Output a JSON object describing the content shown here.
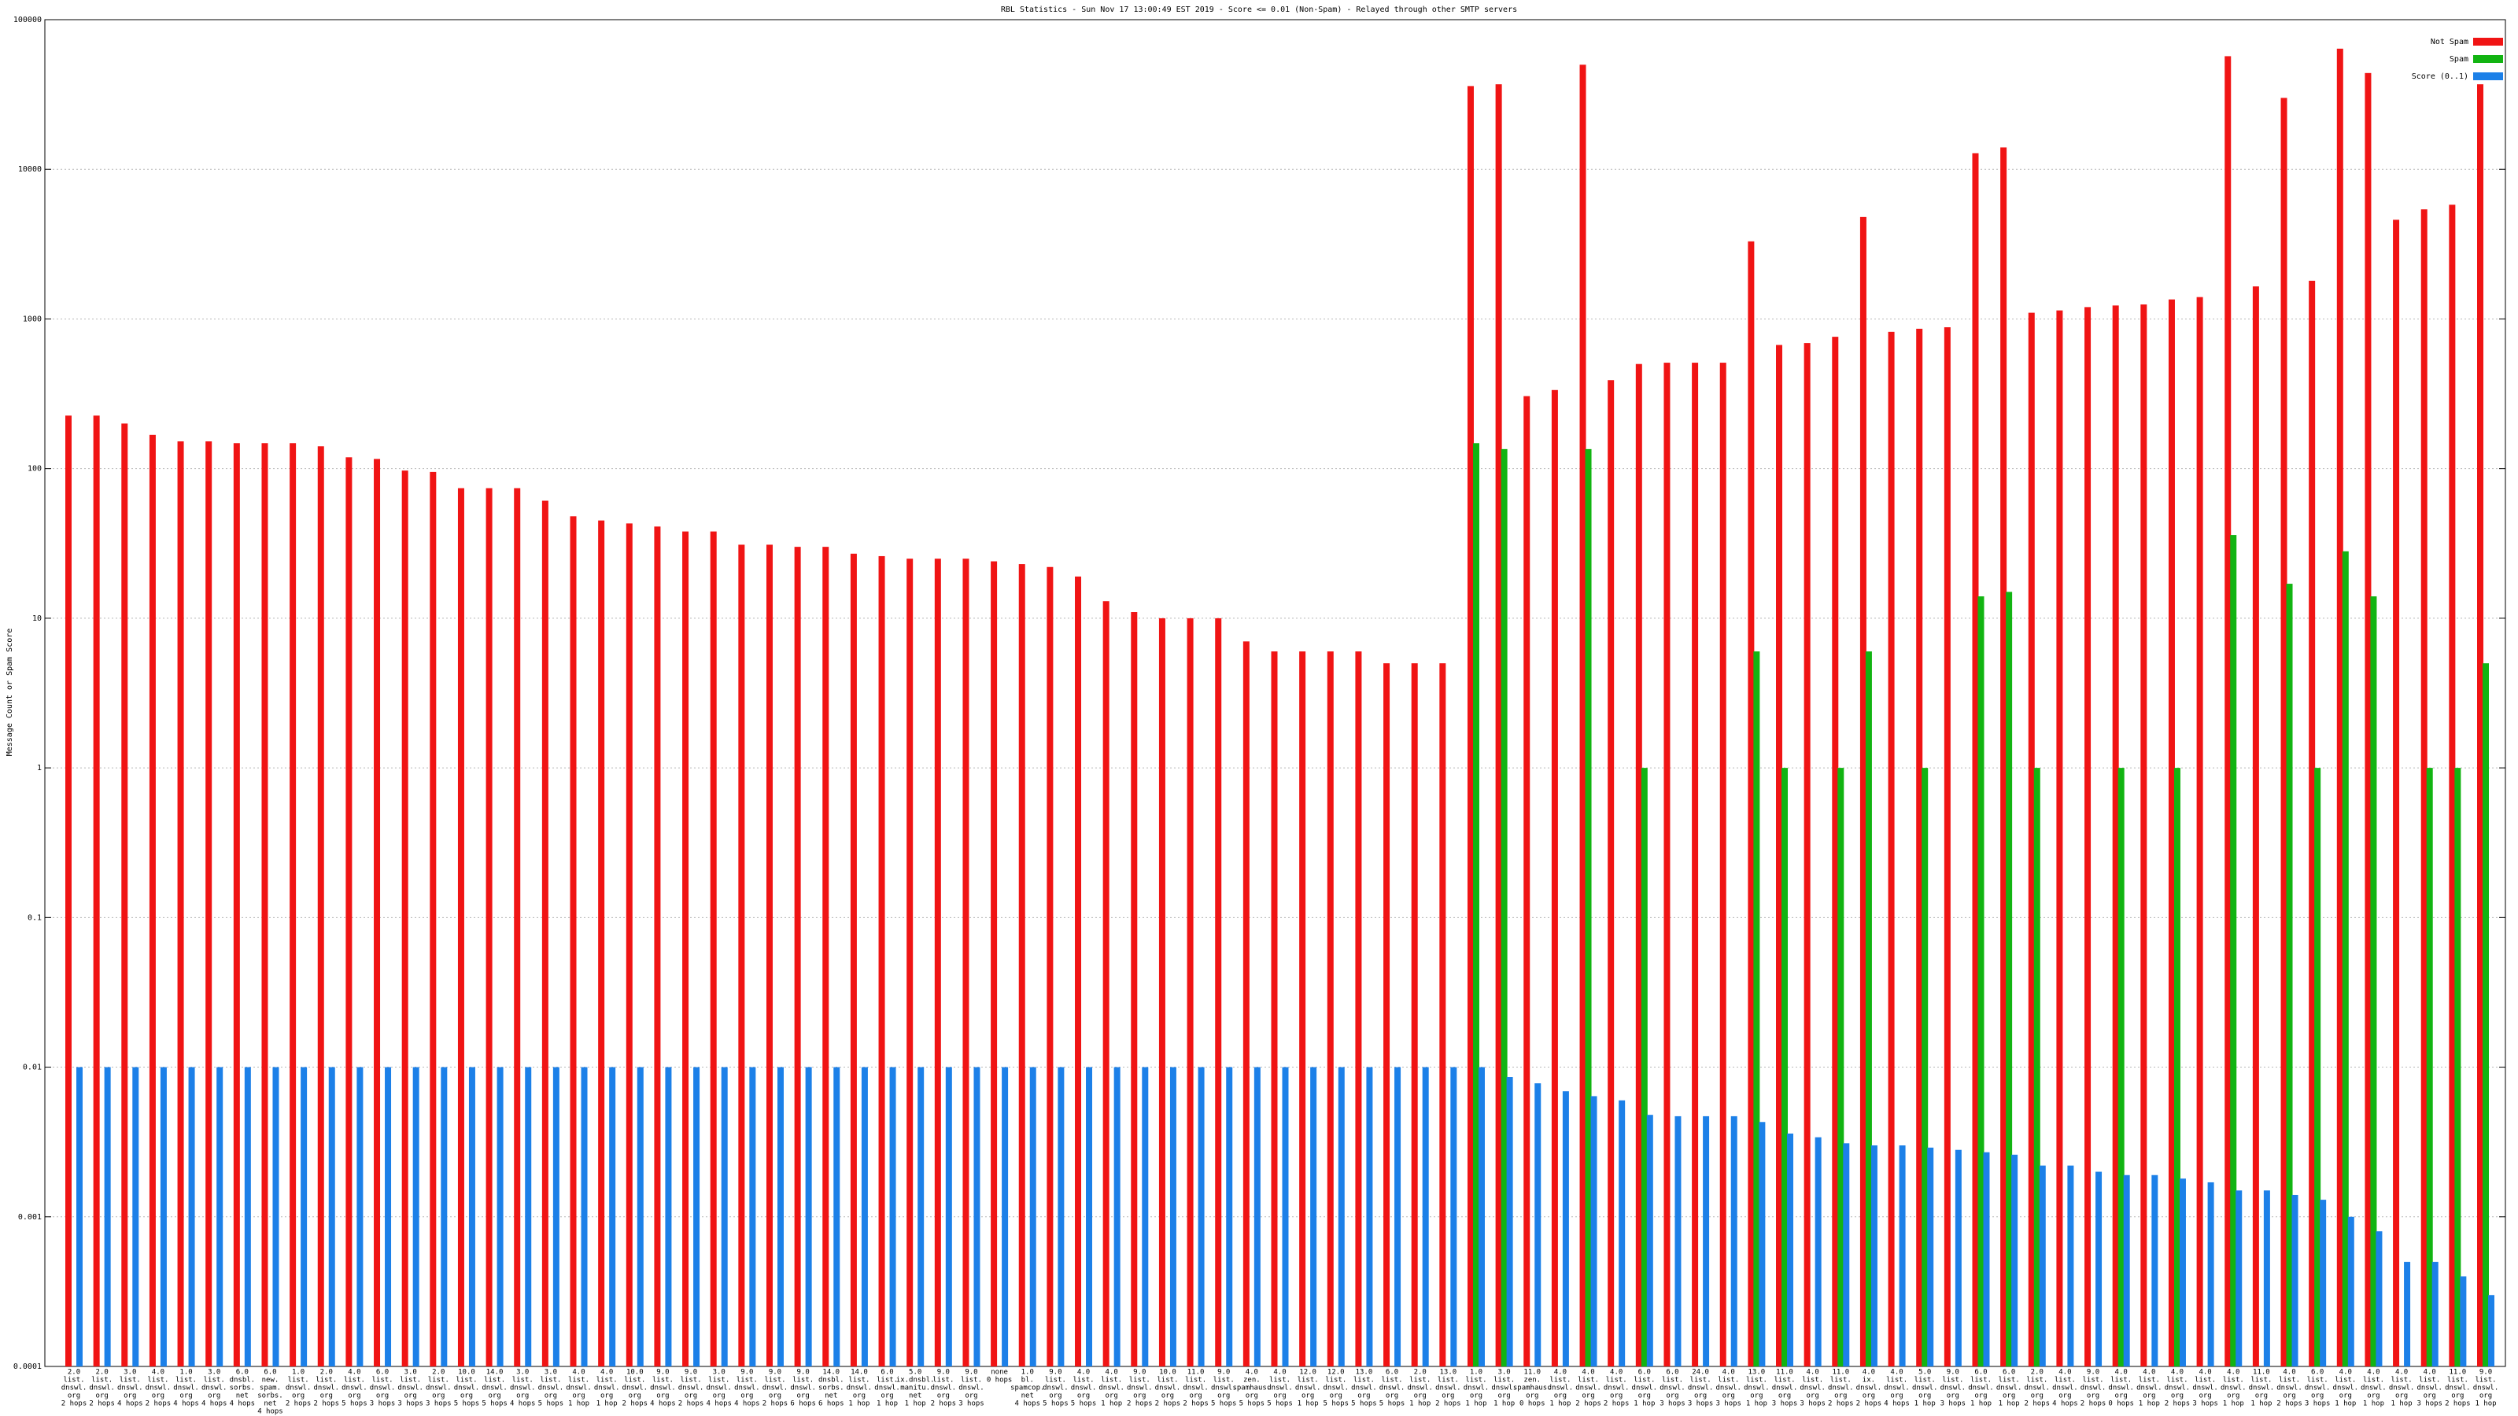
{
  "chart_data": {
    "type": "bar",
    "title": "RBL Statistics - Sun Nov 17 13:00:49 EST 2019 - Score <= 0.01 (Non-Spam) - Relayed through other SMTP servers",
    "y_label": "Message Count or Spam Score",
    "log_scale": true,
    "grid": true,
    "legend": "top-right",
    "ylim": [
      0.0001,
      100000
    ],
    "yticks": [
      0.0001,
      0.001,
      0.01,
      0.1,
      1,
      10,
      100,
      1000,
      10000,
      100000
    ],
    "categories": [
      [
        "2.0",
        "list.",
        "dnswl.",
        "org",
        "2 hops"
      ],
      [
        "2.0",
        "list.",
        "dnswl.",
        "org",
        "2 hops"
      ],
      [
        "3.0",
        "list.",
        "dnswl.",
        "org",
        "4 hops"
      ],
      [
        "4.0",
        "list.",
        "dnswl.",
        "org",
        "2 hops"
      ],
      [
        "1.0",
        "list.",
        "dnswl.",
        "org",
        "4 hops"
      ],
      [
        "3.0",
        "list.",
        "dnswl.",
        "org",
        "4 hops"
      ],
      [
        "6.0",
        "dnsbl.",
        "sorbs.",
        "net",
        "4 hops"
      ],
      [
        "6.0",
        "new.",
        "spam.",
        "sorbs.",
        "net",
        "4 hops"
      ],
      [
        "1.0",
        "list.",
        "dnswl.",
        "org",
        "2 hops"
      ],
      [
        "2.0",
        "list.",
        "dnswl.",
        "org",
        "2 hops"
      ],
      [
        "4.0",
        "list.",
        "dnswl.",
        "org",
        "5 hops"
      ],
      [
        "6.0",
        "list.",
        "dnswl.",
        "org",
        "3 hops"
      ],
      [
        "3.0",
        "list.",
        "dnswl.",
        "org",
        "3 hops"
      ],
      [
        "2.0",
        "list.",
        "dnswl.",
        "org",
        "3 hops"
      ],
      [
        "10.0",
        "list.",
        "dnswl.",
        "org",
        "5 hops"
      ],
      [
        "14.0",
        "list.",
        "dnswl.",
        "org",
        "5 hops"
      ],
      [
        "3.0",
        "list.",
        "dnswl.",
        "org",
        "4 hops"
      ],
      [
        "3.0",
        "list.",
        "dnswl.",
        "org",
        "5 hops"
      ],
      [
        "4.0",
        "list.",
        "dnswl.",
        "org",
        "1 hop"
      ],
      [
        "4.0",
        "list.",
        "dnswl.",
        "org",
        "1 hop"
      ],
      [
        "10.0",
        "list.",
        "dnswl.",
        "org",
        "2 hops"
      ],
      [
        "9.0",
        "list.",
        "dnswl.",
        "org",
        "4 hops"
      ],
      [
        "9.0",
        "list.",
        "dnswl.",
        "org",
        "2 hops"
      ],
      [
        "3.0",
        "list.",
        "dnswl.",
        "org",
        "4 hops"
      ],
      [
        "9.0",
        "list.",
        "dnswl.",
        "org",
        "4 hops"
      ],
      [
        "9.0",
        "list.",
        "dnswl.",
        "org",
        "2 hops"
      ],
      [
        "9.0",
        "list.",
        "dnswl.",
        "org",
        "6 hops"
      ],
      [
        "14.0",
        "dnsbl.",
        "sorbs.",
        "net",
        "6 hops"
      ],
      [
        "14.0",
        "list.",
        "dnswl.",
        "org",
        "1 hop"
      ],
      [
        "6.0",
        "list.",
        "dnswl.",
        "org",
        "1 hop"
      ],
      [
        "5.0",
        "ix.dnsbl.",
        "manitu.",
        "net",
        "1 hop"
      ],
      [
        "9.0",
        "list.",
        "dnswl.",
        "org",
        "2 hops"
      ],
      [
        "9.0",
        "list.",
        "dnswl.",
        "org",
        "3 hops"
      ],
      [
        "none",
        "0 hops"
      ],
      [
        "1.0",
        "bl.",
        "spamcop.",
        "net",
        "4 hops"
      ],
      [
        "9.0",
        "list.",
        "dnswl.",
        "org",
        "5 hops"
      ],
      [
        "4.0",
        "list.",
        "dnswl.",
        "org",
        "5 hops"
      ],
      [
        "4.0",
        "list.",
        "dnswl.",
        "org",
        "1 hop"
      ],
      [
        "9.0",
        "list.",
        "dnswl.",
        "org",
        "2 hops"
      ],
      [
        "10.0",
        "list.",
        "dnswl.",
        "org",
        "2 hops"
      ],
      [
        "11.0",
        "list.",
        "dnswl.",
        "org",
        "2 hops"
      ],
      [
        "9.0",
        "list.",
        "dnswl.",
        "org",
        "5 hops"
      ],
      [
        "4.0",
        "zen.",
        "spamhaus.",
        "org",
        "5 hops"
      ],
      [
        "4.0",
        "list.",
        "dnswl.",
        "org",
        "5 hops"
      ],
      [
        "12.0",
        "list.",
        "dnswl.",
        "org",
        "1 hop"
      ],
      [
        "12.0",
        "list.",
        "dnswl.",
        "org",
        "5 hops"
      ],
      [
        "13.0",
        "list.",
        "dnswl.",
        "org",
        "5 hops"
      ],
      [
        "6.0",
        "list.",
        "dnswl.",
        "org",
        "5 hops"
      ],
      [
        "2.0",
        "list.",
        "dnswl.",
        "org",
        "1 hop"
      ],
      [
        "13.0",
        "list.",
        "dnswl.",
        "org",
        "2 hops"
      ],
      [
        "1.0",
        "list.",
        "dnswl.",
        "org",
        "1 hop"
      ],
      [
        "3.0",
        "list.",
        "dnswl.",
        "org",
        "1 hop"
      ],
      [
        "11.0",
        "zen.",
        "spamhaus.",
        "org",
        "0 hops"
      ],
      [
        "4.0",
        "list.",
        "dnswl.",
        "org",
        "1 hop"
      ],
      [
        "4.0",
        "list.",
        "dnswl.",
        "org",
        "2 hops"
      ],
      [
        "4.0",
        "list.",
        "dnswl.",
        "org",
        "2 hops"
      ],
      [
        "6.0",
        "list.",
        "dnswl.",
        "org",
        "1 hop"
      ],
      [
        "6.0",
        "list.",
        "dnswl.",
        "org",
        "3 hops"
      ],
      [
        "24.0",
        "list.",
        "dnswl.",
        "org",
        "3 hops"
      ],
      [
        "4.0",
        "list.",
        "dnswl.",
        "org",
        "3 hops"
      ],
      [
        "13.0",
        "list.",
        "dnswl.",
        "org",
        "1 hop"
      ],
      [
        "11.0",
        "list.",
        "dnswl.",
        "org",
        "3 hops"
      ],
      [
        "4.0",
        "list.",
        "dnswl.",
        "org",
        "3 hops"
      ],
      [
        "11.0",
        "list.",
        "dnswl.",
        "org",
        "2 hops"
      ],
      [
        "4.0",
        "ix.",
        "dnswl.",
        "org",
        "2 hops"
      ],
      [
        "4.0",
        "list.",
        "dnswl.",
        "org",
        "4 hops"
      ],
      [
        "5.0",
        "list.",
        "dnswl.",
        "org",
        "1 hop"
      ],
      [
        "9.0",
        "list.",
        "dnswl.",
        "org",
        "3 hops"
      ],
      [
        "6.0",
        "list.",
        "dnswl.",
        "org",
        "1 hop"
      ],
      [
        "6.0",
        "list.",
        "dnswl.",
        "org",
        "1 hop"
      ],
      [
        "2.0",
        "list.",
        "dnswl.",
        "org",
        "2 hops"
      ],
      [
        "4.0",
        "list.",
        "dnswl.",
        "org",
        "4 hops"
      ],
      [
        "9.0",
        "list.",
        "dnswl.",
        "org",
        "2 hops"
      ],
      [
        "4.0",
        "list.",
        "dnswl.",
        "org",
        "0 hops"
      ],
      [
        "4.0",
        "list.",
        "dnswl.",
        "org",
        "1 hop"
      ],
      [
        "4.0",
        "list.",
        "dnswl.",
        "org",
        "2 hops"
      ],
      [
        "4.0",
        "list.",
        "dnswl.",
        "org",
        "3 hops"
      ],
      [
        "4.0",
        "list.",
        "dnswl.",
        "org",
        "1 hop"
      ],
      [
        "11.0",
        "list.",
        "dnswl.",
        "org",
        "1 hop"
      ],
      [
        "4.0",
        "list.",
        "dnswl.",
        "org",
        "2 hops"
      ],
      [
        "6.0",
        "list.",
        "dnswl.",
        "org",
        "3 hops"
      ],
      [
        "4.0",
        "list.",
        "dnswl.",
        "org",
        "1 hop"
      ],
      [
        "4.0",
        "list.",
        "dnswl.",
        "org",
        "1 hop"
      ],
      [
        "4.0",
        "list.",
        "dnswl.",
        "org",
        "1 hop"
      ],
      [
        "4.0",
        "list.",
        "dnswl.",
        "org",
        "3 hops"
      ],
      [
        "11.0",
        "list.",
        "dnswl.",
        "org",
        "2 hops"
      ],
      [
        "9.0",
        "list.",
        "dnswl.",
        "org",
        "1 hop"
      ]
    ],
    "series": [
      {
        "name": "Not Spam",
        "color": "#f01414",
        "values": [
          226,
          226,
          200,
          168,
          152,
          152,
          148,
          148,
          148,
          141,
          119,
          116,
          97,
          95,
          74,
          74,
          74,
          61,
          48,
          45,
          43,
          41,
          38,
          38,
          31,
          31,
          30,
          30,
          27,
          26,
          25,
          25,
          25,
          24,
          23,
          22,
          19,
          13,
          11,
          10,
          10,
          10,
          7,
          6,
          6,
          6,
          6,
          5,
          5,
          5,
          36000,
          37000,
          305,
          335,
          50000,
          390,
          500,
          510,
          510,
          510,
          3300,
          670,
          690,
          760,
          4800,
          820,
          860,
          880,
          12800,
          14000,
          1100,
          1140,
          1200,
          1230,
          1250,
          1350,
          1400,
          57000,
          1650,
          30000,
          1800,
          64000,
          44000,
          4600,
          5400,
          5800,
          37000
        ]
      },
      {
        "name": "Spam",
        "color": "#12b412",
        "values": [
          null,
          null,
          null,
          null,
          null,
          null,
          null,
          null,
          null,
          null,
          null,
          null,
          null,
          null,
          null,
          null,
          null,
          null,
          null,
          null,
          null,
          null,
          null,
          null,
          null,
          null,
          null,
          null,
          null,
          null,
          null,
          null,
          null,
          null,
          null,
          null,
          null,
          null,
          null,
          null,
          null,
          null,
          null,
          null,
          null,
          null,
          null,
          null,
          null,
          null,
          148,
          135,
          null,
          null,
          135,
          null,
          1,
          null,
          null,
          null,
          6,
          1,
          null,
          1,
          6,
          null,
          1,
          null,
          14,
          15,
          1,
          null,
          null,
          1,
          null,
          1,
          null,
          36,
          null,
          17,
          1,
          28,
          14,
          null,
          1,
          1,
          5
        ]
      },
      {
        "name": "Score (0..1)",
        "color": "#1c80e8",
        "values": [
          0.01,
          0.01,
          0.01,
          0.01,
          0.01,
          0.01,
          0.01,
          0.01,
          0.01,
          0.01,
          0.01,
          0.01,
          0.01,
          0.01,
          0.01,
          0.01,
          0.01,
          0.01,
          0.01,
          0.01,
          0.01,
          0.01,
          0.01,
          0.01,
          0.01,
          0.01,
          0.01,
          0.01,
          0.01,
          0.01,
          0.01,
          0.01,
          0.01,
          0.01,
          0.01,
          0.01,
          0.01,
          0.01,
          0.01,
          0.01,
          0.01,
          0.01,
          0.01,
          0.01,
          0.01,
          0.01,
          0.01,
          0.01,
          0.01,
          0.01,
          0.01,
          0.0086,
          0.0078,
          0.0069,
          0.0064,
          0.006,
          0.0048,
          0.0047,
          0.0047,
          0.0047,
          0.0043,
          0.0036,
          0.0034,
          0.0031,
          0.003,
          0.003,
          0.0029,
          0.0028,
          0.0027,
          0.0026,
          0.0022,
          0.0022,
          0.002,
          0.0019,
          0.0019,
          0.0018,
          0.0017,
          0.0015,
          0.0015,
          0.0014,
          0.0013,
          0.001,
          0.0008,
          0.0005,
          0.0005,
          0.0004,
          0.0003
        ]
      }
    ]
  }
}
